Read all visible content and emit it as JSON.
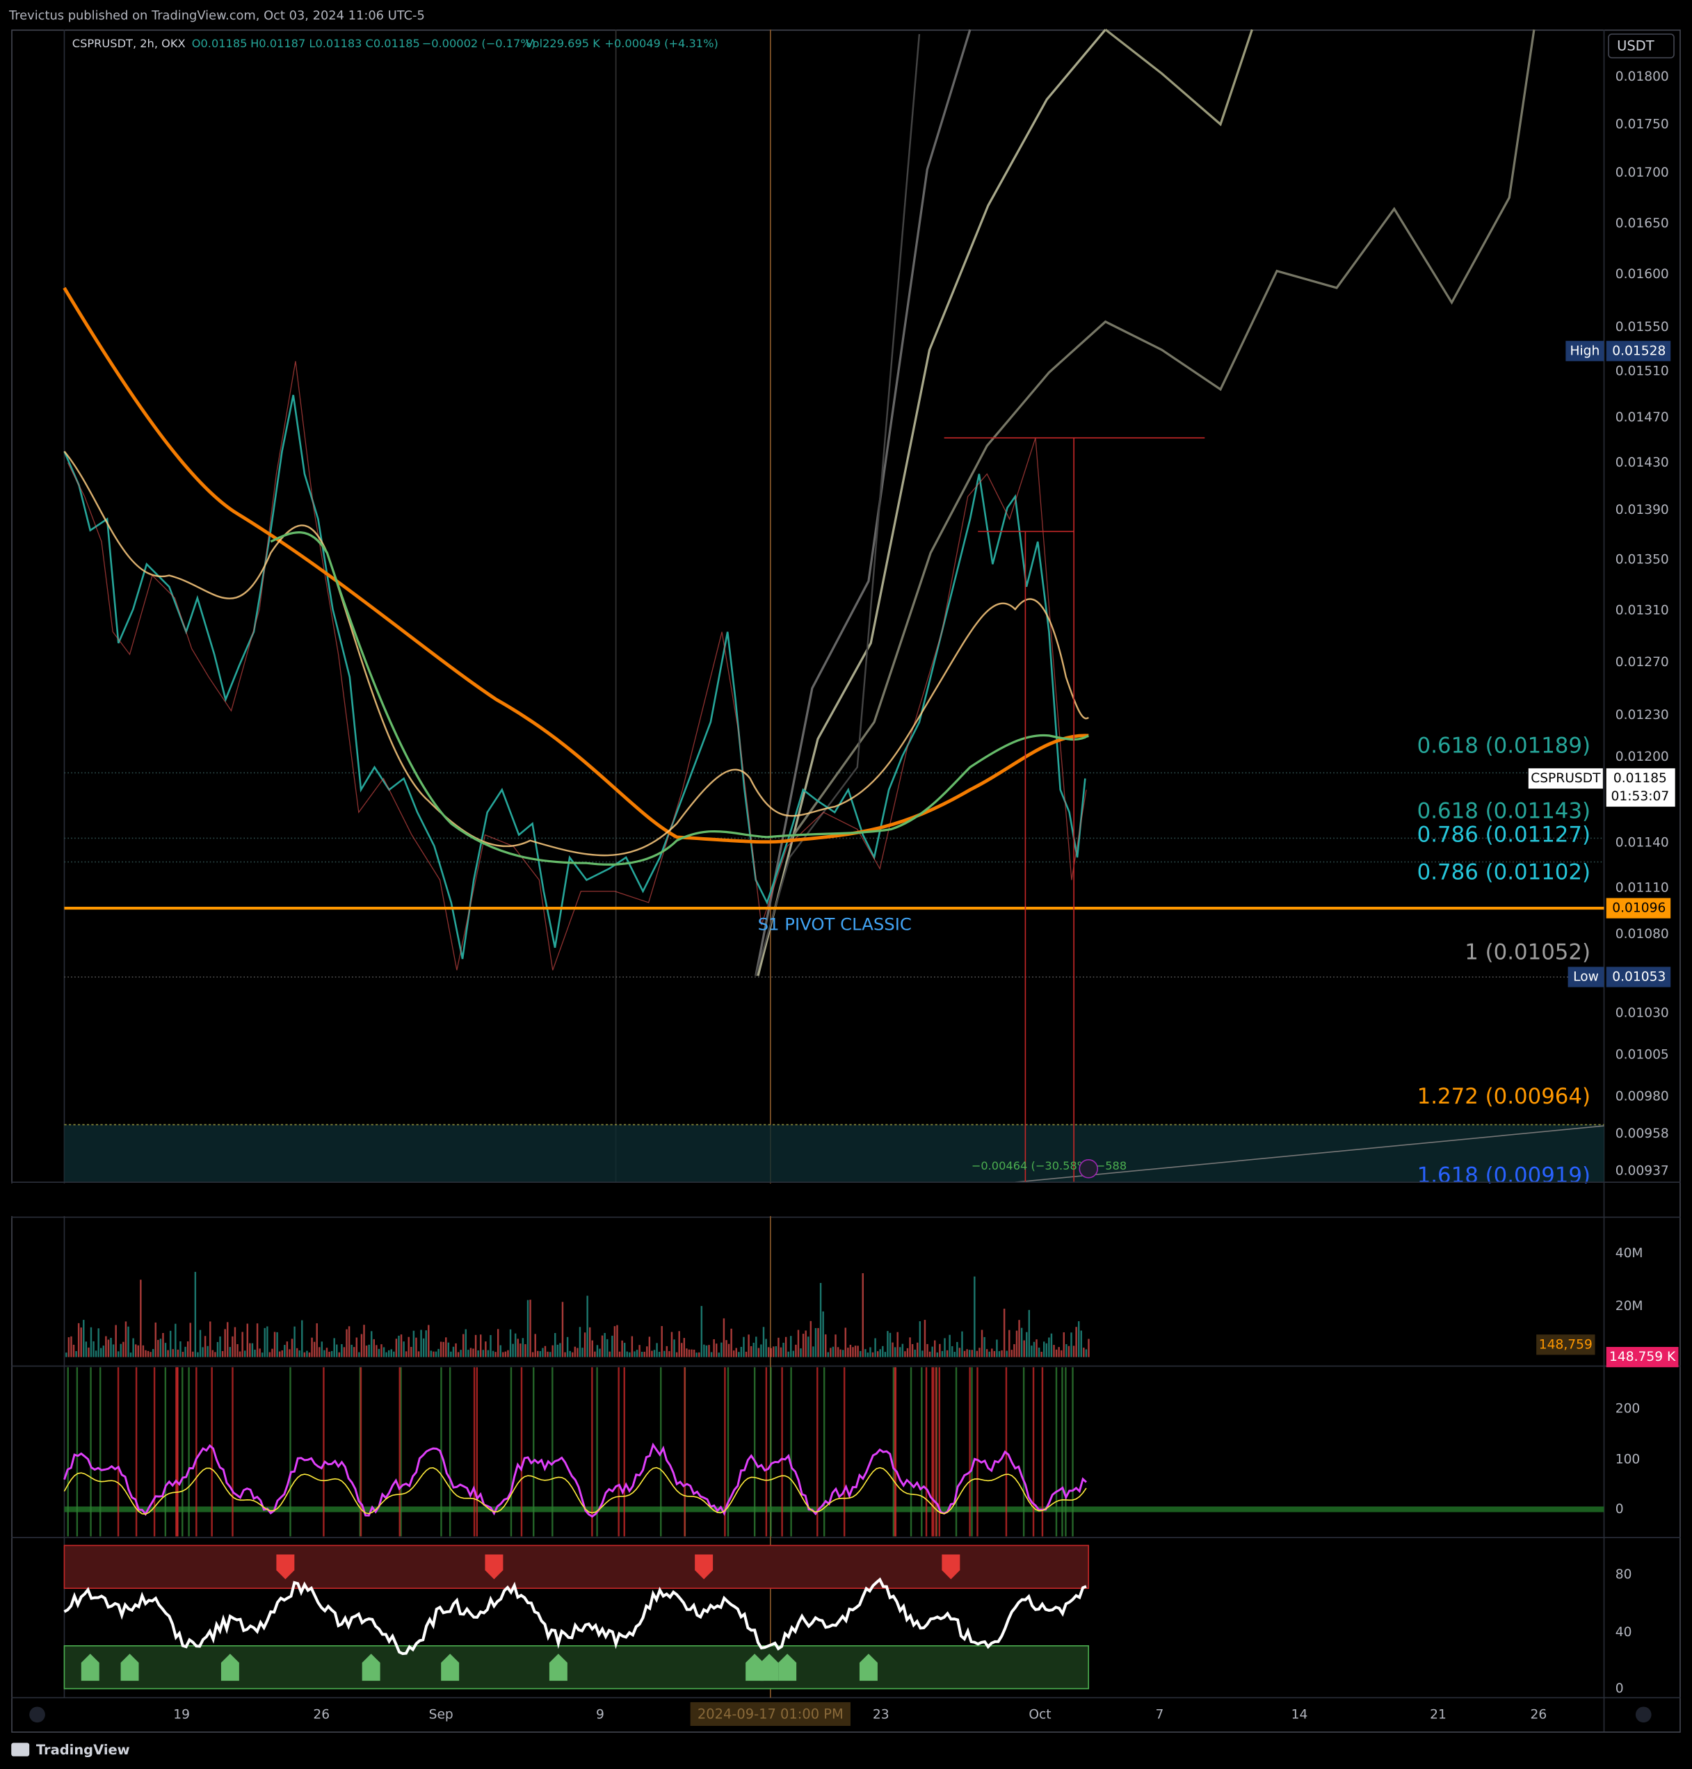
{
  "header": {
    "published": "Trevictus published on TradingView.com, Oct 03, 2024 11:06 UTC-5"
  },
  "legend": {
    "symbol": "CSPRUSDT, 2h, OKX",
    "open": "O0.01185",
    "high": "H0.01187",
    "low": "L0.01183",
    "close": "C0.01185",
    "change": "−0.00002 (−0.17%)",
    "volume": "Vol229.695 K",
    "indicator": "+0.00049 (+4.31%)"
  },
  "currency": "USDT",
  "price_axis": [
    "0.01800",
    "0.01750",
    "0.01700",
    "0.01650",
    "0.01600",
    "0.01550",
    "0.01510",
    "0.01470",
    "0.01430",
    "0.01390",
    "0.01350",
    "0.01310",
    "0.01270",
    "0.01230",
    "0.01200",
    "0.01140",
    "0.01110",
    "0.01080",
    "0.01030",
    "0.01005",
    "0.00980",
    "0.00958",
    "0.00937"
  ],
  "badges": {
    "high_label": "High",
    "high_value": "0.01528",
    "symbol": "CSPRUSDT",
    "last": "0.01185",
    "countdown": "01:53:07",
    "pivot": "0.01096",
    "low_label": "Low",
    "low_value": "0.01053"
  },
  "fib_levels": [
    "0.618 (0.01189)",
    "0.618 (0.01143)",
    "0.786 (0.01127)",
    "0.786 (0.01102)",
    "1 (0.01052)",
    "1.272 (0.00964)",
    "1.618 (0.00919)"
  ],
  "pivot_label": "S1 PIVOT CLASSIC",
  "measure_label": "−0.00464 (−30.58%) −588",
  "volume_axis": [
    "40M",
    "20M"
  ],
  "volume_value": "148,759",
  "volume_badge": "148.759 K",
  "osc_axis": [
    "200",
    "100",
    "0"
  ],
  "rsi_axis": [
    "80",
    "40",
    "0"
  ],
  "time_axis": [
    "19",
    "26",
    "Sep",
    "9",
    "23",
    "Oct",
    "7",
    "14",
    "21",
    "26"
  ],
  "crosshair_time": "2024-09-17  01:00 PM",
  "footer": {
    "brand": "TradingView"
  }
}
